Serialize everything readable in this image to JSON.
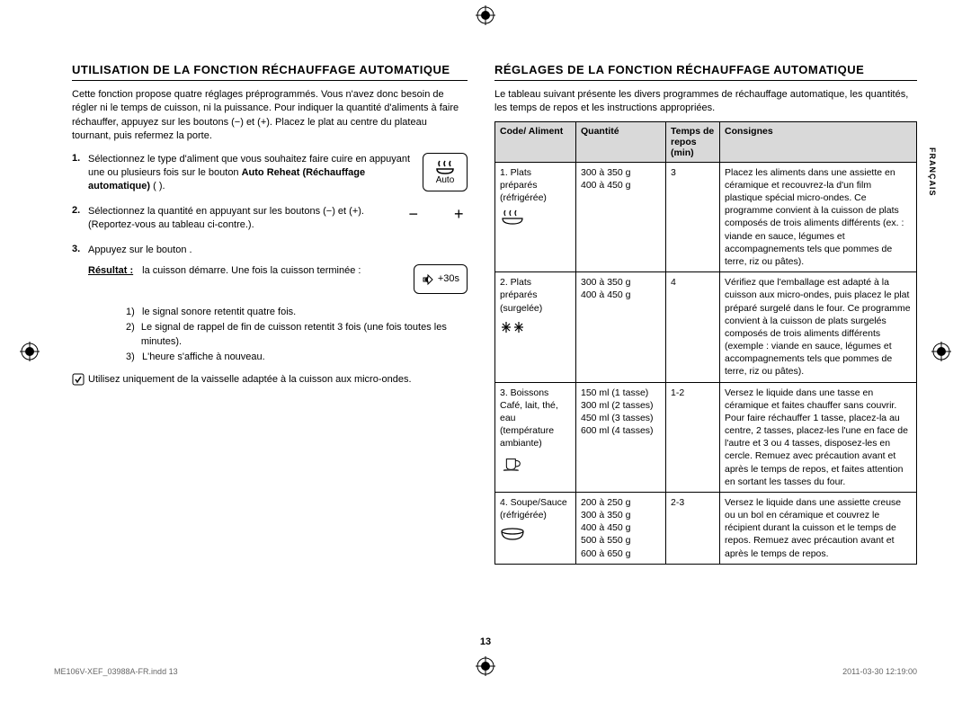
{
  "left": {
    "heading": "UTILISATION DE LA FONCTION RÉCHAUFFAGE AUTOMATIQUE",
    "intro": "Cette fonction propose quatre réglages préprogrammés. Vous n'avez donc besoin de régler ni le temps de cuisson, ni la puissance. Pour indiquer la quantité d'aliments à faire réchauffer, appuyez sur les boutons (−) et (+). Placez le plat au centre du plateau tournant, puis refermez la porte.",
    "step1": {
      "num": "1.",
      "text_a": "Sélectionnez le type d'aliment que vous souhaitez faire cuire en appuyant une ou plusieurs fois sur le bouton ",
      "text_b": "Auto Reheat (Réchauffage automatique)",
      "text_c": " (    ).",
      "icon_label": "Auto"
    },
    "step2": {
      "num": "2.",
      "text": "Sélectionnez la quantité en appuyant sur les boutons (−) et (+). (Reportez-vous au tableau ci-contre.).",
      "minus": "−",
      "plus": "+"
    },
    "step3": {
      "num": "3.",
      "text": "Appuyez sur le bouton     .",
      "result_label": "Résultat :",
      "result_text": "la cuisson démarre. Une fois la cuisson terminée :",
      "sub1_n": "1)",
      "sub1": "le signal sonore retentit quatre fois.",
      "sub2_n": "2)",
      "sub2": "Le signal de rappel de fin de cuisson retentit 3 fois (une fois toutes les minutes).",
      "sub3_n": "3)",
      "sub3": "L'heure s'affiche à nouveau.",
      "icon_label": "+30s"
    },
    "note": "Utilisez uniquement de la vaisselle adaptée à la cuisson aux micro-ondes."
  },
  "right": {
    "heading": "RÉGLAGES DE LA FONCTION RÉCHAUFFAGE AUTOMATIQUE",
    "intro": "Le tableau suivant présente les divers programmes de réchauffage automatique, les quantités, les temps de repos et les instructions appropriées.",
    "headers": {
      "code": "Code/\nAliment",
      "qty": "Quantité",
      "time": "Temps de repos (min)",
      "cons": "Consignes"
    },
    "rows": [
      {
        "code": "1. Plats préparés (réfrigérée)",
        "qty": "300 à 350 g\n400 à 450 g",
        "time": "3",
        "cons": "Placez les aliments dans une assiette en céramique et recouvrez-la d'un film plastique spécial micro-ondes. Ce programme convient à la cuisson de plats composés de trois aliments différents (ex. : viande en sauce, légumes et accompagnements tels que pommes de terre, riz ou pâtes).",
        "icon": "soup"
      },
      {
        "code": "2. Plats préparés (surgelée)",
        "qty": "300 à 350 g\n400 à 450 g",
        "time": "4",
        "cons": "Vérifiez que l'emballage est adapté à la cuisson aux micro-ondes, puis placez le plat préparé surgelé dans le four. Ce programme convient à la cuisson de plats surgelés composés de trois aliments différents (exemple : viande en sauce, légumes et accompagnements tels que pommes de terre, riz ou pâtes).",
        "icon": "snow"
      },
      {
        "code": "3. Boissons Café, lait, thé, eau (température ambiante)",
        "qty": "150 ml (1 tasse)\n300 ml (2 tasses)\n450 ml (3 tasses)\n600 ml (4 tasses)",
        "time": "1-2",
        "cons": "Versez le liquide dans une tasse en céramique et faites chauffer sans couvrir. Pour faire réchauffer 1 tasse, placez-la au centre, 2 tasses, placez-les l'une en face de l'autre et 3 ou 4 tasses, disposez-les en cercle. Remuez avec précaution avant et après le temps de repos, et faites attention en sortant les tasses du four.",
        "icon": "cup"
      },
      {
        "code": "4. Soupe/Sauce (réfrigérée)",
        "qty": "200 à 250 g\n300 à 350 g\n400 à 450 g\n500 à 550 g\n600 à 650 g",
        "time": "2-3",
        "cons": "Versez le liquide dans une assiette creuse ou un bol en céramique et couvrez le récipient durant la cuisson et le temps de repos. Remuez avec précaution avant et après le temps de repos.",
        "icon": "bowl"
      }
    ]
  },
  "side_tab": "FRANÇAIS",
  "page_num": "13",
  "footer_left": "ME106V-XEF_03988A-FR.indd   13",
  "footer_right": "2011-03-30   12:19:00"
}
